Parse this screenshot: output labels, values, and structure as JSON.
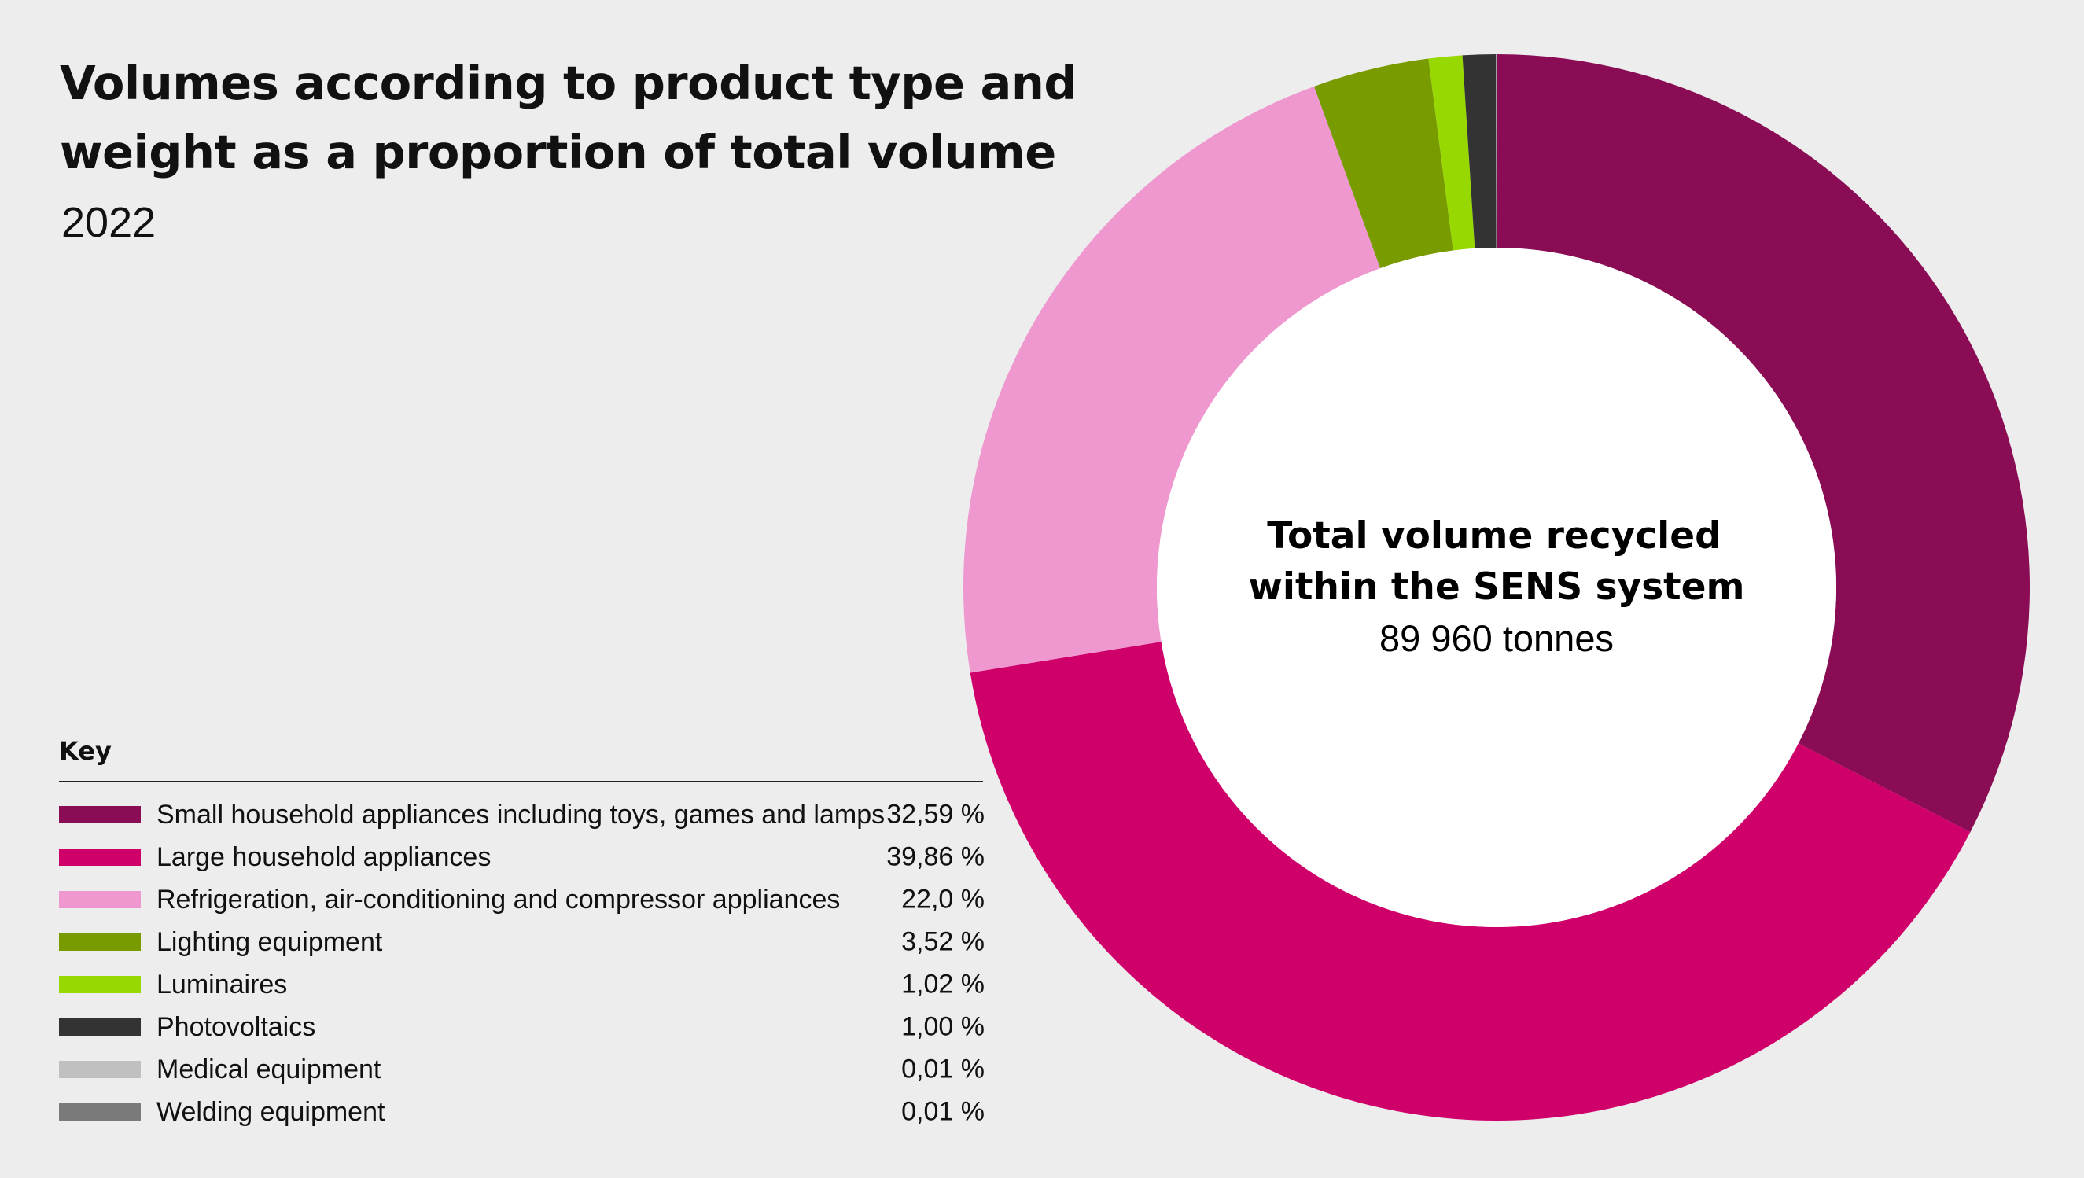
{
  "title": "Volumes according to product type and weight as a proportion of total volume",
  "subtitle": "2022",
  "center": {
    "title_line1": "Total volume recycled",
    "title_line2": "within the SENS system",
    "value": "89 960 tonnes"
  },
  "legend": {
    "heading": "Key",
    "items": [
      {
        "label": "Small household appliances including toys, games and lamps",
        "value": "32,59 %",
        "color": "#8a0c55"
      },
      {
        "label": "Large household appliances",
        "value": "39,86 %",
        "color": "#d0006b"
      },
      {
        "label": "Refrigeration, air-conditioning and compressor appliances",
        "value": "22,0 %",
        "color": "#ef97cf"
      },
      {
        "label": "Lighting equipment",
        "value": "3,52 %",
        "color": "#789c00"
      },
      {
        "label": "Luminaires",
        "value": "1,02 %",
        "color": "#96d800"
      },
      {
        "label": "Photovoltaics",
        "value": "1,00 %",
        "color": "#333333"
      },
      {
        "label": "Medical equipment",
        "value": "0,01 %",
        "color": "#c0c0c0"
      },
      {
        "label": "Welding equipment",
        "value": "0,01 %",
        "color": "#7a7a7a"
      }
    ]
  },
  "chart_data": {
    "type": "pie",
    "variant": "donut",
    "categories": [
      "Small household appliances including toys, games and lamps",
      "Large household appliances",
      "Refrigeration, air-conditioning and compressor appliances",
      "Lighting equipment",
      "Luminaires",
      "Photovoltaics",
      "Medical equipment",
      "Welding equipment"
    ],
    "values": [
      32.59,
      39.86,
      22.0,
      3.52,
      1.02,
      1.0,
      0.01,
      0.01
    ],
    "colors": [
      "#8a0c55",
      "#d0006b",
      "#ef97cf",
      "#789c00",
      "#96d800",
      "#333333",
      "#c0c0c0",
      "#7a7a7a"
    ],
    "title": "Volumes according to product type and weight as a proportion of total volume",
    "subtitle": "2022",
    "legend_position": "bottom-left",
    "start": "top",
    "direction": "clockwise"
  }
}
